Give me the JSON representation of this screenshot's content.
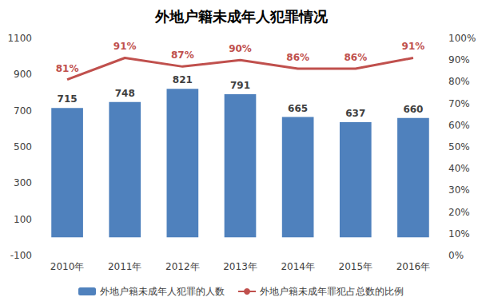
{
  "chart_data": {
    "type": "bar",
    "title": "外地户籍未成年人犯罪情况",
    "categories": [
      "2010年",
      "2011年",
      "2012年",
      "2013年",
      "2014年",
      "2015年",
      "2016年"
    ],
    "series": [
      {
        "name": "外地户籍未成年人犯罪的人数",
        "type": "bar",
        "color": "#4f81bd",
        "values": [
          715,
          748,
          821,
          791,
          665,
          637,
          660
        ]
      },
      {
        "name": "外地户籍未成年罪犯占总数的比例",
        "type": "line",
        "color": "#c0504d",
        "axis": "y2",
        "marker": "none",
        "values": [
          81,
          91,
          87,
          90,
          86,
          86,
          91
        ],
        "value_labels": [
          "81%",
          "91%",
          "87%",
          "90%",
          "86%",
          "86%",
          "91%"
        ]
      }
    ],
    "ylim": [
      -100,
      1100
    ],
    "yticks": [
      -100,
      100,
      300,
      500,
      700,
      900,
      1100
    ],
    "y2lim": [
      0,
      100
    ],
    "y2ticks": [
      {
        "value": 0,
        "label": "0%"
      },
      {
        "value": 10,
        "label": "10%"
      },
      {
        "value": 20,
        "label": "20%"
      },
      {
        "value": 30,
        "label": "30%"
      },
      {
        "value": 40,
        "label": "40%"
      },
      {
        "value": 50,
        "label": "50%"
      },
      {
        "value": 60,
        "label": "60%"
      },
      {
        "value": 70,
        "label": "70%"
      },
      {
        "value": 80,
        "label": "80%"
      },
      {
        "value": 90,
        "label": "90%"
      },
      {
        "value": 100,
        "label": "100%"
      }
    ],
    "grid": false,
    "legend": "bottom",
    "data_labels": true
  }
}
